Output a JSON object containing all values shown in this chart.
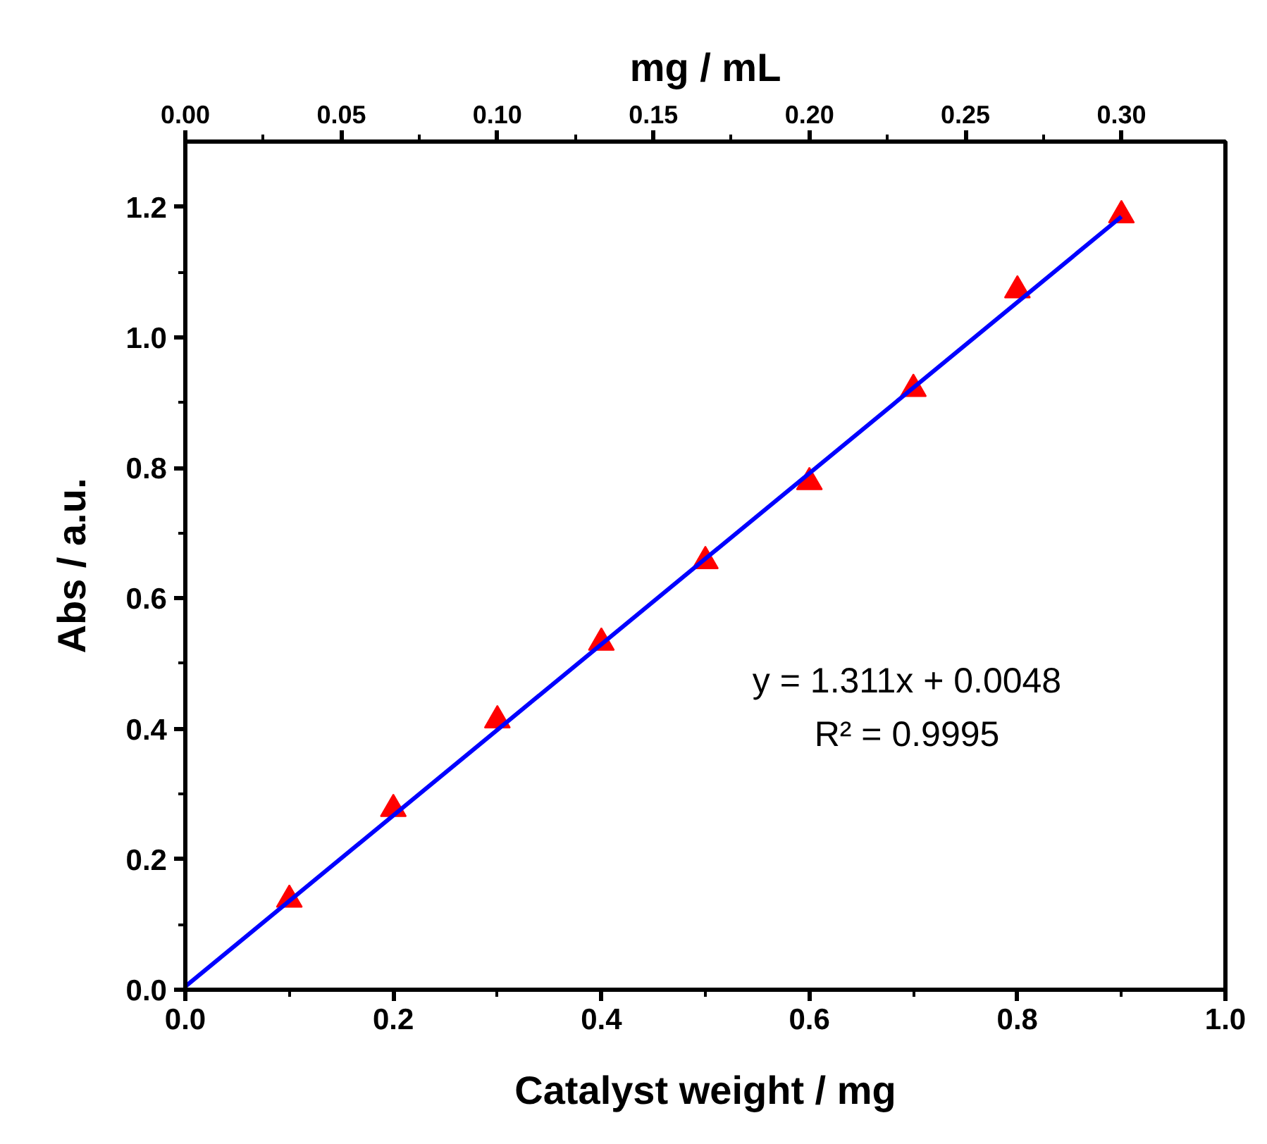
{
  "chart_data": {
    "type": "scatter",
    "xlabel": "Catalyst weight / mg",
    "ylabel": "Abs / a.u.",
    "x2label": "mg / mL",
    "series": [
      {
        "color": "#ff0000",
        "marker": "triangle",
        "x": [
          0.1,
          0.2,
          0.3,
          0.4,
          0.5,
          0.6,
          0.7,
          0.8,
          0.9
        ],
        "values": [
          0.138,
          0.277,
          0.413,
          0.532,
          0.657,
          0.778,
          0.921,
          1.072,
          1.187
        ]
      },
      {
        "type": "line",
        "color": "#0000ff",
        "line_style": "solid",
        "x": [
          0,
          0.9
        ],
        "values": [
          0.005,
          1.185
        ]
      }
    ],
    "xlim": [
      0,
      1.0
    ],
    "ylim": [
      0,
      1.3
    ],
    "x2lim": [
      0,
      0.3333
    ],
    "xticks": [
      {
        "value": 0,
        "label": "0.0"
      },
      {
        "value": 0.2,
        "label": "0.2"
      },
      {
        "value": 0.4,
        "label": "0.4"
      },
      {
        "value": 0.6,
        "label": "0.6"
      },
      {
        "value": 0.8,
        "label": "0.8"
      },
      {
        "value": 1.0,
        "label": "1.0"
      }
    ],
    "yticks": [
      {
        "value": 0,
        "label": "0.0"
      },
      {
        "value": 0.2,
        "label": "0.2"
      },
      {
        "value": 0.4,
        "label": "0.4"
      },
      {
        "value": 0.6,
        "label": "0.6"
      },
      {
        "value": 0.8,
        "label": "0.8"
      },
      {
        "value": 1.0,
        "label": "1.0"
      },
      {
        "value": 1.2,
        "label": "1.2"
      }
    ],
    "x2ticks": [
      {
        "value": 0,
        "label": "0.00"
      },
      {
        "value": 0.05,
        "label": "0.05"
      },
      {
        "value": 0.1,
        "label": "0.10"
      },
      {
        "value": 0.15,
        "label": "0.15"
      },
      {
        "value": 0.2,
        "label": "0.20"
      },
      {
        "value": 0.25,
        "label": "0.25"
      },
      {
        "value": 0.3,
        "label": "0.30"
      }
    ],
    "annotations": [
      "y = 1.311x + 0.0048",
      "R² = 0.9995"
    ],
    "grid": false
  }
}
